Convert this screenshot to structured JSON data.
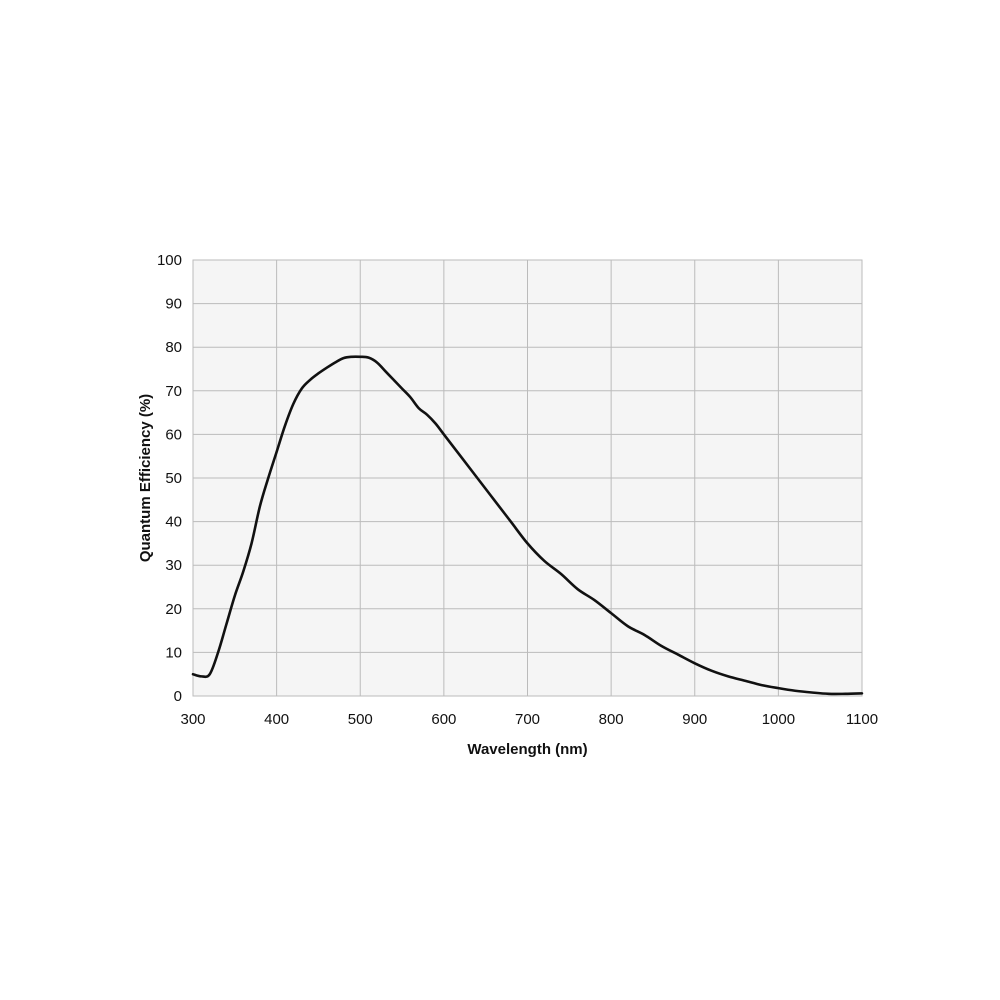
{
  "chart_data": {
    "type": "line",
    "title": "",
    "xlabel": "Wavelength (nm)",
    "ylabel": "Quantum Efficiency (%)",
    "xlim": [
      300,
      1100
    ],
    "ylim": [
      0,
      100
    ],
    "x_ticks": [
      300,
      400,
      500,
      600,
      700,
      800,
      900,
      1000,
      1100
    ],
    "y_ticks": [
      0,
      10,
      20,
      30,
      40,
      50,
      60,
      70,
      80,
      90,
      100
    ],
    "grid": true,
    "legend": "none",
    "colors": {
      "plot_background": "#f5f5f5",
      "grid": "#bbbbbb",
      "line": "#111111"
    },
    "series": [
      {
        "x": [
          300,
          310,
          320,
          330,
          340,
          350,
          360,
          370,
          380,
          390,
          400,
          410,
          420,
          430,
          440,
          450,
          460,
          470,
          480,
          490,
          500,
          510,
          520,
          530,
          540,
          550,
          560,
          570,
          580,
          590,
          600,
          620,
          640,
          660,
          680,
          700,
          720,
          740,
          760,
          780,
          800,
          820,
          840,
          860,
          880,
          900,
          920,
          940,
          960,
          980,
          1000,
          1020,
          1040,
          1060,
          1080,
          1100
        ],
        "y": [
          5,
          4.5,
          5,
          10,
          16.5,
          23,
          28.5,
          35,
          43.5,
          50,
          56,
          62,
          67,
          70.5,
          72.5,
          74,
          75.3,
          76.5,
          77.5,
          77.8,
          77.8,
          77.6,
          76.5,
          74.5,
          72.5,
          70.5,
          68.5,
          66,
          64.5,
          62.5,
          60,
          55,
          50,
          45,
          40,
          35,
          31,
          28,
          24.5,
          22,
          19,
          16,
          14,
          11.5,
          9.5,
          7.5,
          5.8,
          4.5,
          3.5,
          2.5,
          1.8,
          1.2,
          0.8,
          0.5,
          0.5,
          0.6
        ]
      }
    ]
  }
}
